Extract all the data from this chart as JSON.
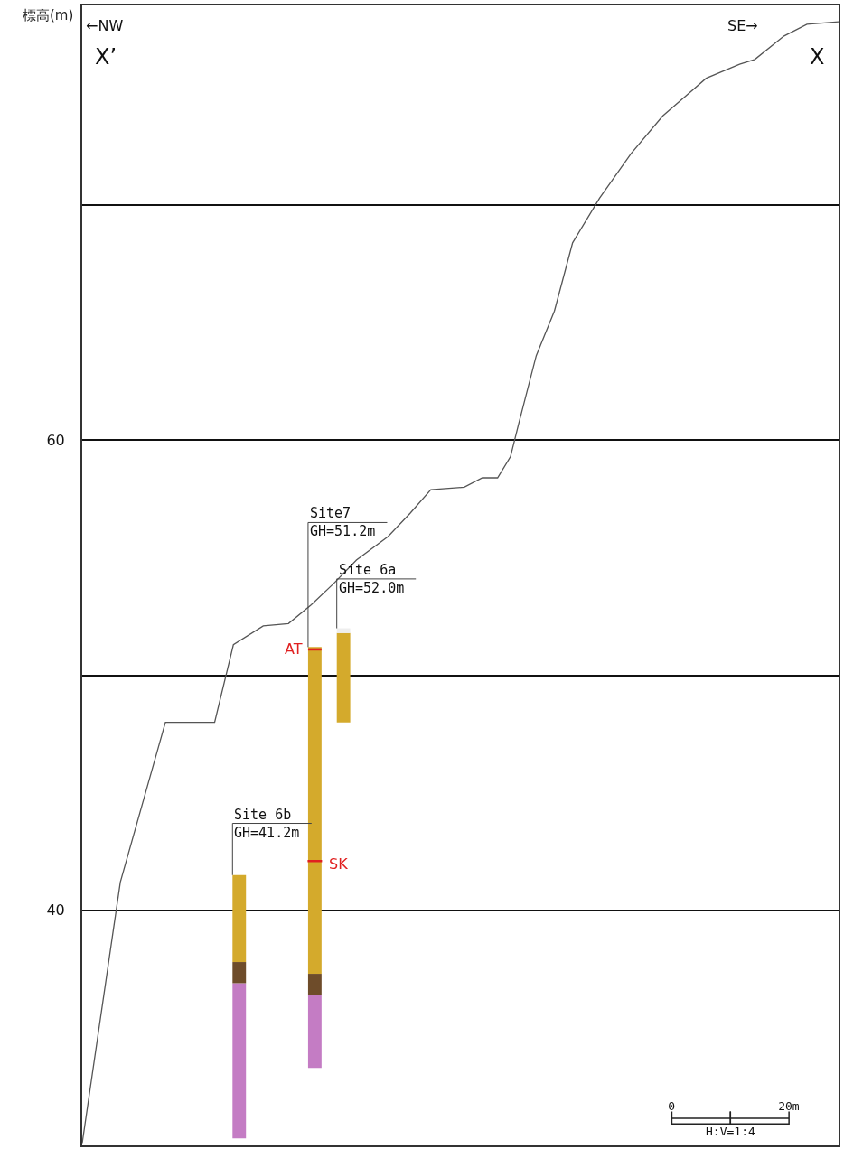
{
  "chart_data": {
    "type": "bar",
    "ylabel": "標高(m)",
    "grid": "y",
    "xlim": [
      -100.6,
      28.5
    ],
    "ylim": [
      30,
      78.5
    ],
    "xticks": [
      0,
      {
        "value": 20,
        "label": "20m"
      }
    ],
    "yticks": [
      40,
      {
        "value": 50,
        "label": null
      },
      60,
      {
        "value": 70,
        "label": null
      }
    ],
    "x": [
      -73.8,
      -60.9,
      -56.0
    ],
    "series": [
      {
        "type": "line",
        "color": "#555555",
        "x": [
          -100.6,
          -94.1,
          -86.4,
          -83.8,
          -78.0,
          -74.8,
          -69.7,
          -65.4,
          -61.5,
          -57.7,
          -53.8,
          -48.4,
          -44.6,
          -41.1,
          -35.4,
          -32.3,
          -29.7,
          -27.5,
          -26.1,
          -23.1,
          -20.0,
          -16.9,
          -12.3,
          -6.9,
          -1.5,
          5.9,
          11.6,
          14.2,
          19.2,
          23.1,
          28.5
        ],
        "values": [
          30.1,
          41.2,
          48.0,
          48.0,
          48.0,
          51.3,
          52.1,
          52.2,
          53.0,
          53.9,
          54.9,
          55.9,
          56.9,
          57.9,
          58.0,
          58.4,
          58.4,
          59.3,
          60.7,
          63.6,
          65.5,
          68.4,
          70.3,
          72.2,
          73.8,
          75.4,
          76.0,
          76.2,
          77.2,
          77.7,
          77.8
        ]
      },
      {
        "color": "#c47cc4",
        "base": [
          30.3,
          33.3,
          null
        ],
        "values": [
          6.6,
          3.1,
          null
        ]
      },
      {
        "color": "#6e4c2a",
        "base": [
          36.9,
          36.4,
          null
        ],
        "values": [
          0.9,
          0.9,
          null
        ]
      },
      {
        "color": "#d4aa2c",
        "base": [
          37.8,
          37.3,
          48.0
        ],
        "values": [
          3.7,
          13.9,
          3.8
        ]
      },
      {
        "color": "#eeeeee",
        "base": [
          null,
          null,
          51.8
        ],
        "values": [
          null,
          null,
          0.2
        ]
      }
    ],
    "annotations": [
      {
        "text": "Site7\nGH=51.2m",
        "x": -60.9,
        "y": 51.2
      },
      {
        "text": "Site 6a\nGH=52.0m",
        "x": -56.0,
        "y": 52.0
      },
      {
        "text": "Site 6b\nGH=41.2m",
        "x": -73.8,
        "y": 41.5
      },
      {
        "text": "AT",
        "x": -60.9,
        "y": 51.1
      },
      "←NW",
      "X’",
      "SE→",
      "X",
      "H:V=1:4",
      "SK"
    ]
  }
}
